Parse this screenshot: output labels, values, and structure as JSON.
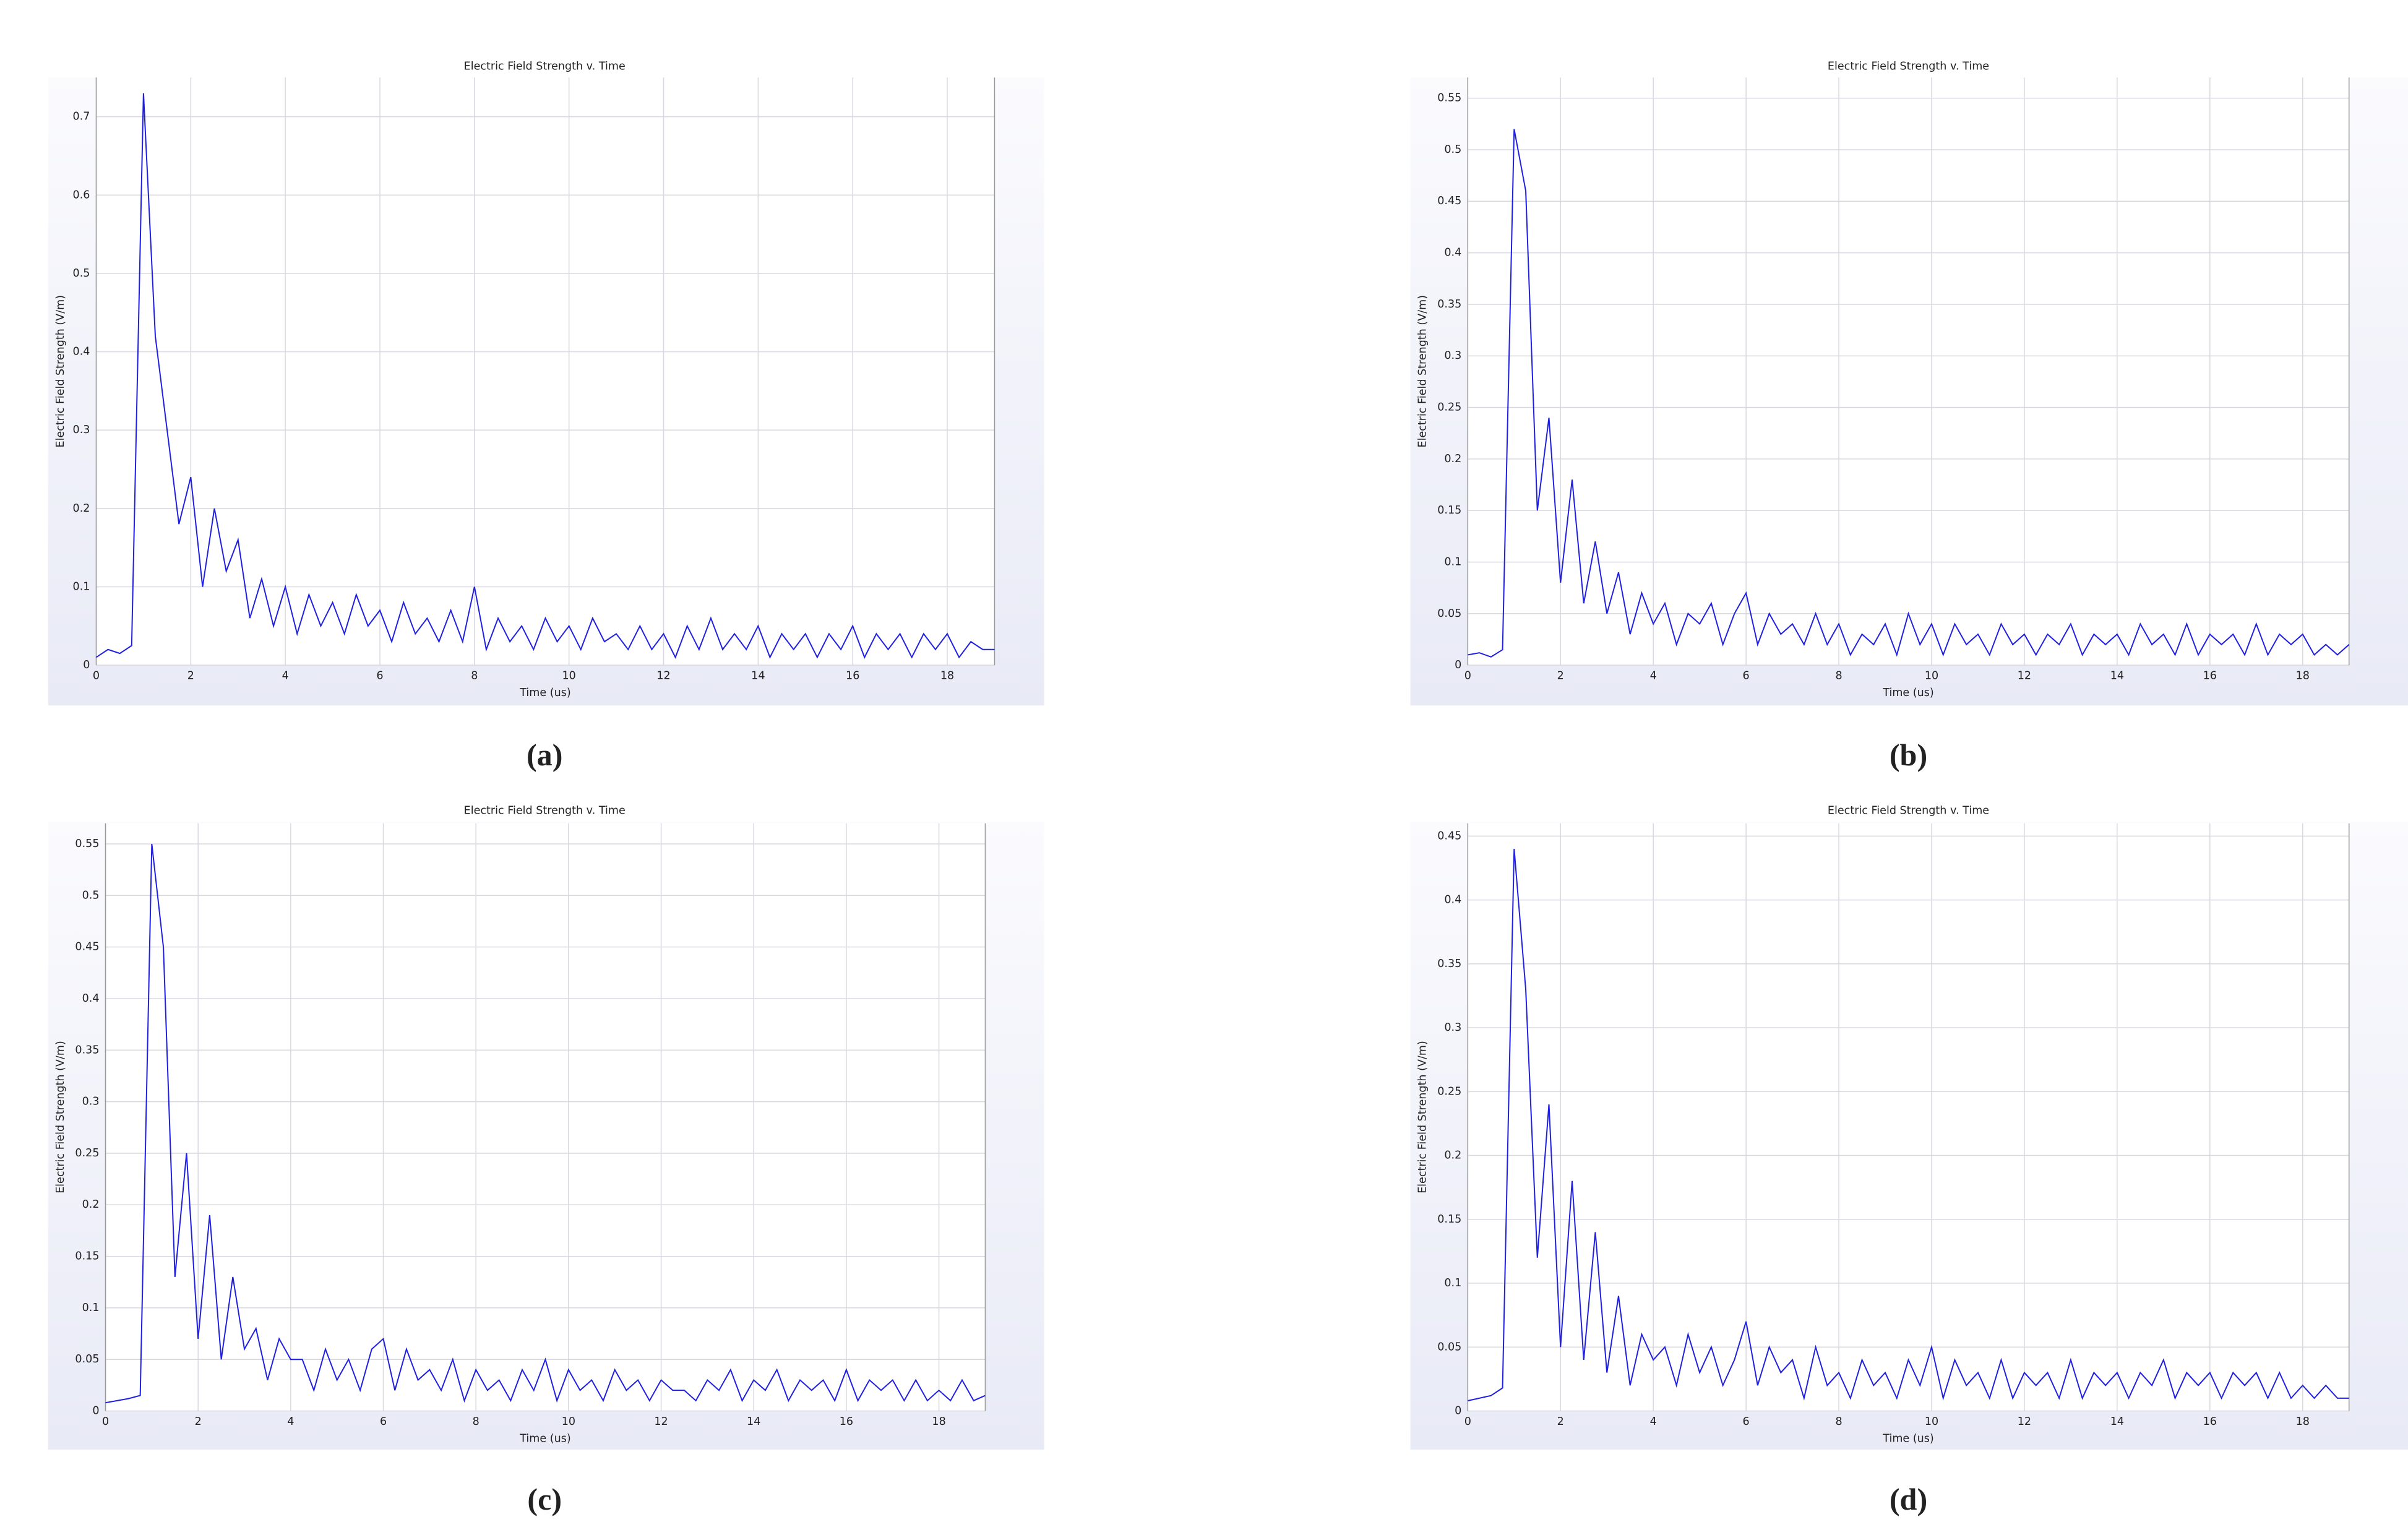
{
  "chart_data": [
    {
      "type": "line",
      "title": "Electric Field Strength v. Time",
      "xlabel": "Time (us)",
      "ylabel": "Electric Field Strength (V/m)",
      "caption": "(a)",
      "grid": true,
      "xlim": [
        0,
        19
      ],
      "ylim": [
        0,
        0.75
      ],
      "xticks": [
        0,
        2,
        4,
        6,
        8,
        10,
        12,
        14,
        16,
        18
      ],
      "yticks": [
        0,
        0.1,
        0.2,
        0.3,
        0.4,
        0.5,
        0.6,
        0.7
      ],
      "x": [
        0,
        0.25,
        0.5,
        0.75,
        1,
        1.25,
        1.5,
        1.75,
        2,
        2.25,
        2.5,
        2.75,
        3,
        3.25,
        3.5,
        3.75,
        4,
        4.25,
        4.5,
        4.75,
        5,
        5.25,
        5.5,
        5.75,
        6,
        6.25,
        6.5,
        6.75,
        7,
        7.25,
        7.5,
        7.75,
        8,
        8.25,
        8.5,
        8.75,
        9,
        9.25,
        9.5,
        9.75,
        10,
        10.25,
        10.5,
        10.75,
        11,
        11.25,
        11.5,
        11.75,
        12,
        12.25,
        12.5,
        12.75,
        13,
        13.25,
        13.5,
        13.75,
        14,
        14.25,
        14.5,
        14.75,
        15,
        15.25,
        15.5,
        15.75,
        16,
        16.25,
        16.5,
        16.75,
        17,
        17.25,
        17.5,
        17.75,
        18,
        18.25,
        18.5,
        18.75,
        19
      ],
      "series": [
        {
          "color": "#2020e0",
          "values": [
            0.01,
            0.02,
            0.015,
            0.025,
            0.73,
            0.42,
            0.3,
            0.18,
            0.24,
            0.1,
            0.2,
            0.12,
            0.16,
            0.06,
            0.11,
            0.05,
            0.1,
            0.04,
            0.09,
            0.05,
            0.08,
            0.04,
            0.09,
            0.05,
            0.07,
            0.03,
            0.08,
            0.04,
            0.06,
            0.03,
            0.07,
            0.03,
            0.1,
            0.02,
            0.06,
            0.03,
            0.05,
            0.02,
            0.06,
            0.03,
            0.05,
            0.02,
            0.06,
            0.03,
            0.04,
            0.02,
            0.05,
            0.02,
            0.04,
            0.01,
            0.05,
            0.02,
            0.06,
            0.02,
            0.04,
            0.02,
            0.05,
            0.01,
            0.04,
            0.02,
            0.04,
            0.01,
            0.04,
            0.02,
            0.05,
            0.01,
            0.04,
            0.02,
            0.04,
            0.01,
            0.04,
            0.02,
            0.04,
            0.01,
            0.03,
            0.02,
            0.02
          ]
        }
      ]
    },
    {
      "type": "line",
      "title": "Electric Field Strength v. Time",
      "xlabel": "Time (us)",
      "ylabel": "Electric Field Strength (V/m)",
      "caption": "(b)",
      "grid": true,
      "xlim": [
        0,
        19
      ],
      "ylim": [
        0,
        0.57
      ],
      "xticks": [
        0,
        2,
        4,
        6,
        8,
        10,
        12,
        14,
        16,
        18
      ],
      "yticks": [
        0,
        0.05,
        0.1,
        0.15,
        0.2,
        0.25,
        0.3,
        0.35,
        0.4,
        0.45,
        0.5,
        0.55
      ],
      "x": [
        0,
        0.25,
        0.5,
        0.75,
        1,
        1.25,
        1.5,
        1.75,
        2,
        2.25,
        2.5,
        2.75,
        3,
        3.25,
        3.5,
        3.75,
        4,
        4.25,
        4.5,
        4.75,
        5,
        5.25,
        5.5,
        5.75,
        6,
        6.25,
        6.5,
        6.75,
        7,
        7.25,
        7.5,
        7.75,
        8,
        8.25,
        8.5,
        8.75,
        9,
        9.25,
        9.5,
        9.75,
        10,
        10.25,
        10.5,
        10.75,
        11,
        11.25,
        11.5,
        11.75,
        12,
        12.25,
        12.5,
        12.75,
        13,
        13.25,
        13.5,
        13.75,
        14,
        14.25,
        14.5,
        14.75,
        15,
        15.25,
        15.5,
        15.75,
        16,
        16.25,
        16.5,
        16.75,
        17,
        17.25,
        17.5,
        17.75,
        18,
        18.25,
        18.5,
        18.75,
        19
      ],
      "series": [
        {
          "color": "#2020e0",
          "values": [
            0.01,
            0.012,
            0.008,
            0.015,
            0.52,
            0.46,
            0.15,
            0.24,
            0.08,
            0.18,
            0.06,
            0.12,
            0.05,
            0.09,
            0.03,
            0.07,
            0.04,
            0.06,
            0.02,
            0.05,
            0.04,
            0.06,
            0.02,
            0.05,
            0.07,
            0.02,
            0.05,
            0.03,
            0.04,
            0.02,
            0.05,
            0.02,
            0.04,
            0.01,
            0.03,
            0.02,
            0.04,
            0.01,
            0.05,
            0.02,
            0.04,
            0.01,
            0.04,
            0.02,
            0.03,
            0.01,
            0.04,
            0.02,
            0.03,
            0.01,
            0.03,
            0.02,
            0.04,
            0.01,
            0.03,
            0.02,
            0.03,
            0.01,
            0.04,
            0.02,
            0.03,
            0.01,
            0.04,
            0.01,
            0.03,
            0.02,
            0.03,
            0.01,
            0.04,
            0.01,
            0.03,
            0.02,
            0.03,
            0.01,
            0.02,
            0.01,
            0.02
          ]
        }
      ]
    },
    {
      "type": "line",
      "title": "Electric Field Strength v. Time",
      "xlabel": "Time (us)",
      "ylabel": "Electric Field Strength (V/m)",
      "caption": "(c)",
      "grid": true,
      "xlim": [
        0,
        19
      ],
      "ylim": [
        0,
        0.57
      ],
      "xticks": [
        0,
        2,
        4,
        6,
        8,
        10,
        12,
        14,
        16,
        18
      ],
      "yticks": [
        0,
        0.05,
        0.1,
        0.15,
        0.2,
        0.25,
        0.3,
        0.35,
        0.4,
        0.45,
        0.5,
        0.55
      ],
      "x": [
        0,
        0.25,
        0.5,
        0.75,
        1,
        1.25,
        1.5,
        1.75,
        2,
        2.25,
        2.5,
        2.75,
        3,
        3.25,
        3.5,
        3.75,
        4,
        4.25,
        4.5,
        4.75,
        5,
        5.25,
        5.5,
        5.75,
        6,
        6.25,
        6.5,
        6.75,
        7,
        7.25,
        7.5,
        7.75,
        8,
        8.25,
        8.5,
        8.75,
        9,
        9.25,
        9.5,
        9.75,
        10,
        10.25,
        10.5,
        10.75,
        11,
        11.25,
        11.5,
        11.75,
        12,
        12.25,
        12.5,
        12.75,
        13,
        13.25,
        13.5,
        13.75,
        14,
        14.25,
        14.5,
        14.75,
        15,
        15.25,
        15.5,
        15.75,
        16,
        16.25,
        16.5,
        16.75,
        17,
        17.25,
        17.5,
        17.75,
        18,
        18.25,
        18.5,
        18.75,
        19
      ],
      "series": [
        {
          "color": "#2020e0",
          "values": [
            0.008,
            0.01,
            0.012,
            0.015,
            0.55,
            0.45,
            0.13,
            0.25,
            0.07,
            0.19,
            0.05,
            0.13,
            0.06,
            0.08,
            0.03,
            0.07,
            0.05,
            0.05,
            0.02,
            0.06,
            0.03,
            0.05,
            0.02,
            0.06,
            0.07,
            0.02,
            0.06,
            0.03,
            0.04,
            0.02,
            0.05,
            0.01,
            0.04,
            0.02,
            0.03,
            0.01,
            0.04,
            0.02,
            0.05,
            0.01,
            0.04,
            0.02,
            0.03,
            0.01,
            0.04,
            0.02,
            0.03,
            0.01,
            0.03,
            0.02,
            0.02,
            0.01,
            0.03,
            0.02,
            0.04,
            0.01,
            0.03,
            0.02,
            0.04,
            0.01,
            0.03,
            0.02,
            0.03,
            0.01,
            0.04,
            0.01,
            0.03,
            0.02,
            0.03,
            0.01,
            0.03,
            0.01,
            0.02,
            0.01,
            0.03,
            0.01,
            0.015
          ]
        }
      ]
    },
    {
      "type": "line",
      "title": "Electric Field Strength v. Time",
      "xlabel": "Time (us)",
      "ylabel": "Electric Field Strength (V/m)",
      "caption": "(d)",
      "grid": true,
      "xlim": [
        0,
        19
      ],
      "ylim": [
        0,
        0.46
      ],
      "xticks": [
        0,
        2,
        4,
        6,
        8,
        10,
        12,
        14,
        16,
        18
      ],
      "yticks": [
        0,
        0.05,
        0.1,
        0.15,
        0.2,
        0.25,
        0.3,
        0.35,
        0.4,
        0.45
      ],
      "x": [
        0,
        0.25,
        0.5,
        0.75,
        1,
        1.25,
        1.5,
        1.75,
        2,
        2.25,
        2.5,
        2.75,
        3,
        3.25,
        3.5,
        3.75,
        4,
        4.25,
        4.5,
        4.75,
        5,
        5.25,
        5.5,
        5.75,
        6,
        6.25,
        6.5,
        6.75,
        7,
        7.25,
        7.5,
        7.75,
        8,
        8.25,
        8.5,
        8.75,
        9,
        9.25,
        9.5,
        9.75,
        10,
        10.25,
        10.5,
        10.75,
        11,
        11.25,
        11.5,
        11.75,
        12,
        12.25,
        12.5,
        12.75,
        13,
        13.25,
        13.5,
        13.75,
        14,
        14.25,
        14.5,
        14.75,
        15,
        15.25,
        15.5,
        15.75,
        16,
        16.25,
        16.5,
        16.75,
        17,
        17.25,
        17.5,
        17.75,
        18,
        18.25,
        18.5,
        18.75,
        19
      ],
      "series": [
        {
          "color": "#2020e0",
          "values": [
            0.008,
            0.01,
            0.012,
            0.018,
            0.44,
            0.33,
            0.12,
            0.24,
            0.05,
            0.18,
            0.04,
            0.14,
            0.03,
            0.09,
            0.02,
            0.06,
            0.04,
            0.05,
            0.02,
            0.06,
            0.03,
            0.05,
            0.02,
            0.04,
            0.07,
            0.02,
            0.05,
            0.03,
            0.04,
            0.01,
            0.05,
            0.02,
            0.03,
            0.01,
            0.04,
            0.02,
            0.03,
            0.01,
            0.04,
            0.02,
            0.05,
            0.01,
            0.04,
            0.02,
            0.03,
            0.01,
            0.04,
            0.01,
            0.03,
            0.02,
            0.03,
            0.01,
            0.04,
            0.01,
            0.03,
            0.02,
            0.03,
            0.01,
            0.03,
            0.02,
            0.04,
            0.01,
            0.03,
            0.02,
            0.03,
            0.01,
            0.03,
            0.02,
            0.03,
            0.01,
            0.03,
            0.01,
            0.02,
            0.01,
            0.02,
            0.01,
            0.01
          ]
        }
      ]
    }
  ]
}
